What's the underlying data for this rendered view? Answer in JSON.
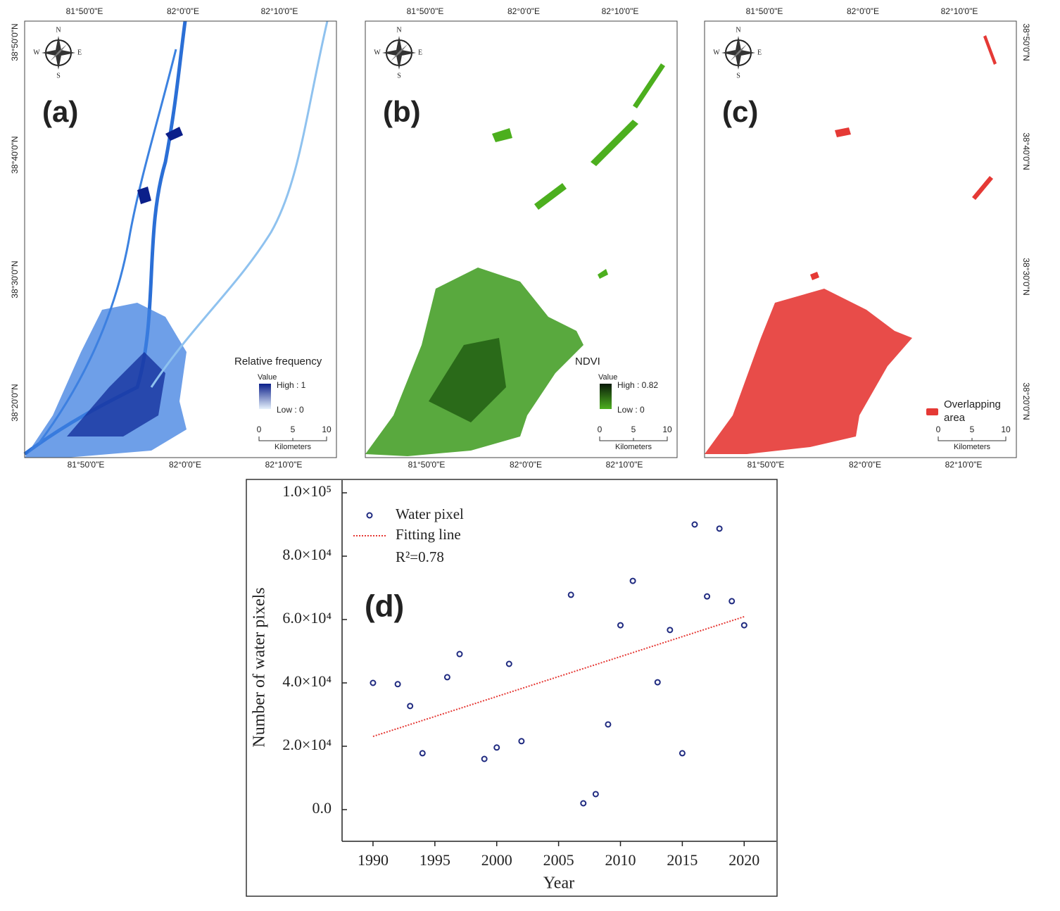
{
  "maps": [
    {
      "label": "(a)",
      "legend_title": "Relative frequency",
      "legend_sub": "Value",
      "high": "High : 1",
      "low": "Low : 0"
    },
    {
      "label": "(b)",
      "legend_title": "NDVI",
      "legend_sub": "Value",
      "high": "High : 0.82",
      "low": "Low : 0"
    },
    {
      "label": "(c)",
      "legend_lines": [
        "Overlapping",
        "area"
      ]
    }
  ],
  "compass": {
    "n": "N",
    "s": "S",
    "e": "E",
    "w": "W"
  },
  "scale_ticks": [
    "0",
    "5",
    "10"
  ],
  "scale_unit": "Kilometers",
  "longitudes": [
    "81°50'0\"E",
    "82°0'0\"E",
    "82°10'0\"E"
  ],
  "latitudes": [
    "38°50'0\"N",
    "38°40'0\"N",
    "38°30'0\"N",
    "38°20'0\"N"
  ],
  "chart_data": {
    "type": "scatter",
    "label": "(d)",
    "xlabel": "Year",
    "ylabel": "Number of water pixels",
    "annotation": "R²=0.78",
    "xlim": [
      1987.5,
      2022.6
    ],
    "xticks": [
      1990,
      1995,
      2000,
      2005,
      2010,
      2015,
      2020
    ],
    "ylim": [
      -10000,
      104000
    ],
    "yticks": [
      {
        "value": 0,
        "label": "0.0"
      },
      {
        "value": 20000,
        "label": "2.0×10⁴"
      },
      {
        "value": 40000,
        "label": "4.0×10⁴"
      },
      {
        "value": 60000,
        "label": "6.0×10⁴"
      },
      {
        "value": 80000,
        "label": "8.0×10⁴"
      },
      {
        "value": 100000,
        "label": "1.0×10⁵"
      }
    ],
    "series": [
      {
        "name": "Water pixel",
        "color": "#1f2a80",
        "marker": "circle",
        "x": [
          1990,
          1992,
          1993,
          1994,
          1996,
          1997,
          1999,
          2000,
          2001,
          2002,
          2006,
          2007,
          2008,
          2009,
          2010,
          2011,
          2013,
          2014,
          2015,
          2016,
          2017,
          2018,
          2019,
          2020
        ],
        "values": [
          40000,
          39600,
          32700,
          17800,
          41800,
          49100,
          16000,
          19600,
          46000,
          21600,
          67800,
          2000,
          4900,
          26900,
          58200,
          72200,
          40200,
          56700,
          17800,
          90000,
          67300,
          88700,
          65800,
          58200
        ]
      },
      {
        "name": "Fitting line",
        "color": "#e53935",
        "line_style": "dotted",
        "x": [
          1990,
          2020
        ],
        "values": [
          23100,
          60900
        ]
      }
    ]
  }
}
